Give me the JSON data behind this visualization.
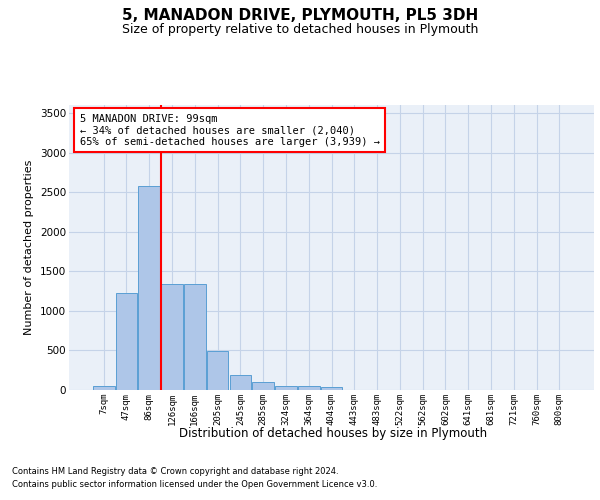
{
  "title": "5, MANADON DRIVE, PLYMOUTH, PL5 3DH",
  "subtitle": "Size of property relative to detached houses in Plymouth",
  "xlabel": "Distribution of detached houses by size in Plymouth",
  "ylabel": "Number of detached properties",
  "categories": [
    "7sqm",
    "47sqm",
    "86sqm",
    "126sqm",
    "166sqm",
    "205sqm",
    "245sqm",
    "285sqm",
    "324sqm",
    "364sqm",
    "404sqm",
    "443sqm",
    "483sqm",
    "522sqm",
    "562sqm",
    "602sqm",
    "641sqm",
    "681sqm",
    "721sqm",
    "760sqm",
    "800sqm"
  ],
  "bar_values": [
    50,
    1220,
    2580,
    1340,
    1340,
    490,
    185,
    100,
    50,
    50,
    35,
    0,
    0,
    0,
    0,
    0,
    0,
    0,
    0,
    0,
    0
  ],
  "bar_color": "#aec6e8",
  "bar_edgecolor": "#5a9fd4",
  "red_line_x": 2.5,
  "ylim_max": 3600,
  "yticks": [
    0,
    500,
    1000,
    1500,
    2000,
    2500,
    3000,
    3500
  ],
  "annotation_line1": "5 MANADON DRIVE: 99sqm",
  "annotation_line2": "← 34% of detached houses are smaller (2,040)",
  "annotation_line3": "65% of semi-detached houses are larger (3,939) →",
  "footer_line1": "Contains HM Land Registry data © Crown copyright and database right 2024.",
  "footer_line2": "Contains public sector information licensed under the Open Government Licence v3.0.",
  "bg_color": "#eaf0f8",
  "grid_color": "#c5d3e8"
}
